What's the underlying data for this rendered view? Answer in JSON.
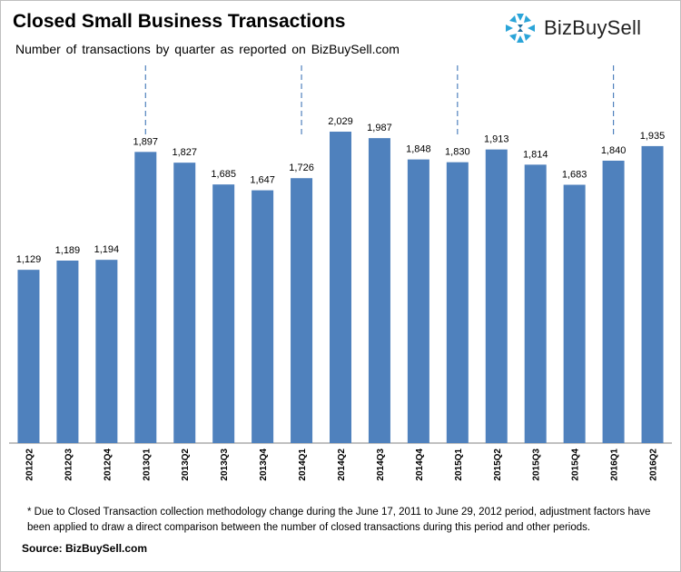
{
  "header": {
    "title": "Closed Small Business Transactions",
    "subtitle": "Number of transactions by quarter as reported on BizBuySell.com"
  },
  "logo": {
    "text": "BizBuySell",
    "icon": "bizbuysell-logo-icon"
  },
  "footer": {
    "footnote": "* Due to Closed Transaction collection methodology change during the June 17, 2011 to June 29, 2012 period, adjustment factors have been applied to draw a direct comparison between the number of closed transactions during this period and other periods.",
    "source": "Source: BizBuySell.com"
  },
  "colors": {
    "bar": "#4f81bd",
    "divider": "#4f81bd"
  },
  "chart_data": {
    "type": "bar",
    "title": "Closed Small Business Transactions",
    "xlabel": "",
    "ylabel": "",
    "ylim": [
      0,
      2200
    ],
    "grid": false,
    "categories": [
      "2012Q2",
      "2012Q3",
      "2012Q4",
      "2013Q1",
      "2013Q2",
      "2013Q3",
      "2013Q4",
      "2014Q1",
      "2014Q2",
      "2014Q3",
      "2014Q4",
      "2015Q1",
      "2015Q2",
      "2015Q3",
      "2015Q4",
      "2016Q1",
      "2016Q2"
    ],
    "values": [
      1129,
      1189,
      1194,
      1897,
      1827,
      1685,
      1647,
      1726,
      2029,
      1987,
      1848,
      1830,
      1913,
      1814,
      1683,
      1840,
      1935
    ],
    "data_labels": [
      "1,129",
      "1,189",
      "1,194",
      "1,897",
      "1,827",
      "1,685",
      "1,647",
      "1,726",
      "2,029",
      "1,987",
      "1,848",
      "1,830",
      "1,913",
      "1,814",
      "1,683",
      "1,840",
      "1,935"
    ],
    "year_dividers_before": [
      "2013Q1",
      "2014Q1",
      "2015Q1",
      "2016Q1"
    ]
  }
}
